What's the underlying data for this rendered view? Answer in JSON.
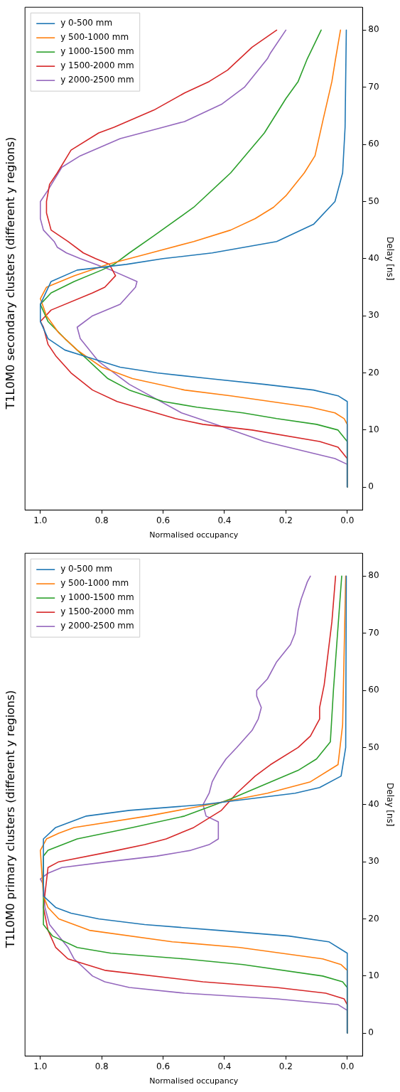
{
  "chart_data": [
    {
      "type": "line",
      "title": "T1L0M0 primary clusters (different y regions)",
      "ylabel": "Delay [ns]",
      "xlabel": "Normalised occupancy",
      "ylim": [
        -4,
        84
      ],
      "xlim": [
        1.05,
        -0.05
      ],
      "yticks": [
        0,
        10,
        20,
        30,
        40,
        50,
        60,
        70,
        80
      ],
      "xticks": [
        {
          "value": 1,
          "label": "1.0"
        },
        {
          "value": 0.8,
          "label": "0.8"
        },
        {
          "value": 0.6,
          "label": "0.6"
        },
        {
          "value": 0.4,
          "label": "0.4"
        },
        {
          "value": 0.2,
          "label": "0.2"
        },
        {
          "value": 0,
          "label": "0.0"
        }
      ],
      "legend": "top left",
      "grid": false,
      "marker": "none",
      "line_style": "solid",
      "series": [
        {
          "name": "y 0-500 mm",
          "color": "#1f77b4",
          "values": [
            0,
            14,
            16,
            17,
            18,
            19,
            20,
            21,
            22,
            24,
            34,
            36,
            38,
            39,
            40,
            42,
            43,
            45,
            50,
            80
          ],
          "x": [
            0,
            0,
            0.06,
            0.19,
            0.42,
            0.66,
            0.81,
            0.9,
            0.95,
            0.99,
            0.99,
            0.95,
            0.85,
            0.71,
            0.47,
            0.17,
            0.09,
            0.02,
            0.005,
            0.003
          ]
        },
        {
          "name": "y 500-1000 mm",
          "color": "#ff7f0e",
          "values": [
            0,
            11,
            12,
            13,
            15,
            16,
            18,
            20,
            22,
            24,
            32,
            34,
            35,
            36,
            38,
            40,
            42,
            44,
            47,
            54,
            80
          ],
          "x": [
            0,
            0,
            0.02,
            0.08,
            0.35,
            0.57,
            0.84,
            0.94,
            0.975,
            0.99,
            1.0,
            0.98,
            0.94,
            0.89,
            0.65,
            0.45,
            0.26,
            0.12,
            0.03,
            0.015,
            0.005
          ]
        },
        {
          "name": "y 1000-1500 mm",
          "color": "#2ca02c",
          "values": [
            0,
            8,
            9,
            10,
            12,
            13,
            14,
            15,
            17,
            19,
            31,
            32,
            34,
            36,
            38,
            41,
            46,
            48,
            51,
            60,
            80
          ],
          "x": [
            0,
            0,
            0.015,
            0.08,
            0.34,
            0.53,
            0.77,
            0.88,
            0.96,
            0.99,
            0.99,
            0.975,
            0.88,
            0.7,
            0.53,
            0.38,
            0.16,
            0.1,
            0.055,
            0.045,
            0.018
          ]
        },
        {
          "name": "y 1500-2000 mm",
          "color": "#d62728",
          "values": [
            0,
            5,
            6,
            7,
            8,
            9,
            11,
            13,
            15,
            18,
            22,
            29,
            30,
            32,
            33,
            34,
            36,
            39,
            42,
            45,
            47,
            50,
            52,
            55,
            57,
            61,
            72,
            80
          ],
          "x": [
            0,
            0,
            0.01,
            0.07,
            0.23,
            0.47,
            0.79,
            0.91,
            0.95,
            0.975,
            0.99,
            0.975,
            0.94,
            0.75,
            0.66,
            0.59,
            0.5,
            0.41,
            0.36,
            0.3,
            0.25,
            0.16,
            0.12,
            0.09,
            0.09,
            0.075,
            0.05,
            0.038
          ]
        },
        {
          "name": "y 2000-2500 mm",
          "color": "#9467bd",
          "values": [
            0,
            4,
            5,
            6,
            7,
            8,
            9,
            10,
            13,
            15,
            19,
            22,
            26,
            27,
            28,
            29,
            30,
            31,
            32,
            33,
            34,
            37,
            38,
            40,
            42,
            44,
            46,
            48,
            50,
            53,
            55,
            57,
            59,
            60,
            62,
            65,
            68,
            70,
            74,
            76,
            79,
            80
          ],
          "x": [
            0,
            0,
            0.03,
            0.23,
            0.53,
            0.71,
            0.79,
            0.83,
            0.89,
            0.91,
            0.97,
            0.985,
            0.99,
            1.0,
            0.975,
            0.93,
            0.78,
            0.62,
            0.51,
            0.45,
            0.42,
            0.42,
            0.46,
            0.47,
            0.45,
            0.44,
            0.42,
            0.395,
            0.36,
            0.31,
            0.29,
            0.28,
            0.295,
            0.295,
            0.26,
            0.23,
            0.185,
            0.17,
            0.16,
            0.15,
            0.13,
            0.12
          ]
        }
      ]
    },
    {
      "type": "line",
      "title": "T1L0M0 secondary clusters (different y regions)",
      "ylabel": "Delay [ns]",
      "xlabel": "Normalised occupancy",
      "ylim": [
        -4,
        84
      ],
      "xlim": [
        1.05,
        -0.05
      ],
      "yticks": [
        0,
        10,
        20,
        30,
        40,
        50,
        60,
        70,
        80
      ],
      "xticks": [
        {
          "value": 1,
          "label": "1.0"
        },
        {
          "value": 0.8,
          "label": "0.8"
        },
        {
          "value": 0.6,
          "label": "0.6"
        },
        {
          "value": 0.4,
          "label": "0.4"
        },
        {
          "value": 0.2,
          "label": "0.2"
        },
        {
          "value": 0,
          "label": "0.0"
        }
      ],
      "legend": "top left",
      "grid": false,
      "marker": "none",
      "line_style": "solid",
      "series": [
        {
          "name": "y 0-500 mm",
          "color": "#1f77b4",
          "values": [
            0,
            15,
            16,
            17,
            18,
            19,
            20,
            21,
            23,
            24,
            26,
            29,
            32,
            36,
            38,
            39,
            40,
            41,
            43,
            46,
            50,
            55,
            63,
            80
          ],
          "x": [
            0,
            0,
            0.03,
            0.11,
            0.27,
            0.45,
            0.62,
            0.74,
            0.86,
            0.92,
            0.975,
            1.0,
            1.0,
            0.965,
            0.88,
            0.72,
            0.6,
            0.44,
            0.23,
            0.11,
            0.04,
            0.015,
            0.007,
            0.003
          ]
        },
        {
          "name": "y 500-1000 mm",
          "color": "#ff7f0e",
          "values": [
            0,
            11,
            12,
            13,
            14,
            16,
            17,
            19,
            21,
            24,
            27,
            30,
            33,
            35,
            37,
            39,
            41,
            43,
            45,
            47,
            49,
            51,
            55,
            58,
            64,
            71,
            75,
            80
          ],
          "x": [
            0,
            0,
            0.01,
            0.04,
            0.12,
            0.38,
            0.53,
            0.7,
            0.8,
            0.88,
            0.94,
            0.98,
            1.0,
            0.98,
            0.89,
            0.78,
            0.64,
            0.5,
            0.38,
            0.3,
            0.24,
            0.2,
            0.14,
            0.105,
            0.08,
            0.05,
            0.038,
            0.022
          ]
        },
        {
          "name": "y 1000-1500 mm",
          "color": "#2ca02c",
          "values": [
            0,
            8,
            10,
            11,
            12,
            13,
            14,
            15,
            17,
            19,
            23,
            26,
            29,
            32,
            34,
            36,
            38,
            39,
            41,
            44,
            49,
            55,
            62,
            68,
            71,
            75,
            80
          ],
          "x": [
            0,
            0,
            0.03,
            0.1,
            0.23,
            0.34,
            0.49,
            0.6,
            0.71,
            0.78,
            0.86,
            0.92,
            0.975,
            1.0,
            0.965,
            0.89,
            0.8,
            0.76,
            0.71,
            0.63,
            0.5,
            0.38,
            0.27,
            0.2,
            0.16,
            0.13,
            0.085
          ]
        },
        {
          "name": "y 1500-2000 mm",
          "color": "#d62728",
          "values": [
            0,
            5,
            7,
            8,
            10,
            11,
            12,
            15,
            17,
            20,
            23,
            25,
            28,
            29,
            31,
            34,
            35,
            37,
            39,
            40,
            41,
            43,
            45,
            48,
            50,
            53,
            55,
            59,
            62,
            63,
            66,
            69,
            71,
            73,
            77,
            80
          ],
          "x": [
            0,
            0,
            0.03,
            0.09,
            0.31,
            0.47,
            0.56,
            0.75,
            0.83,
            0.9,
            0.95,
            0.975,
            0.99,
            1.0,
            0.965,
            0.83,
            0.79,
            0.755,
            0.775,
            0.82,
            0.86,
            0.91,
            0.965,
            0.98,
            0.98,
            0.97,
            0.945,
            0.9,
            0.81,
            0.76,
            0.63,
            0.53,
            0.45,
            0.39,
            0.31,
            0.23
          ]
        },
        {
          "name": "y 2000-2500 mm",
          "color": "#9467bd",
          "values": [
            0,
            4,
            5,
            8,
            11,
            13,
            18,
            22,
            26,
            28,
            30,
            32,
            35,
            36,
            38,
            40,
            41,
            42,
            43,
            45,
            47,
            50,
            52,
            56,
            58,
            61,
            63,
            64,
            67,
            70,
            75,
            76,
            80
          ],
          "x": [
            0,
            0,
            0.04,
            0.27,
            0.43,
            0.54,
            0.71,
            0.81,
            0.87,
            0.88,
            0.83,
            0.74,
            0.69,
            0.685,
            0.77,
            0.87,
            0.915,
            0.945,
            0.955,
            0.99,
            1.0,
            1.0,
            0.975,
            0.93,
            0.87,
            0.74,
            0.6,
            0.53,
            0.41,
            0.335,
            0.26,
            0.25,
            0.2
          ]
        }
      ]
    }
  ]
}
